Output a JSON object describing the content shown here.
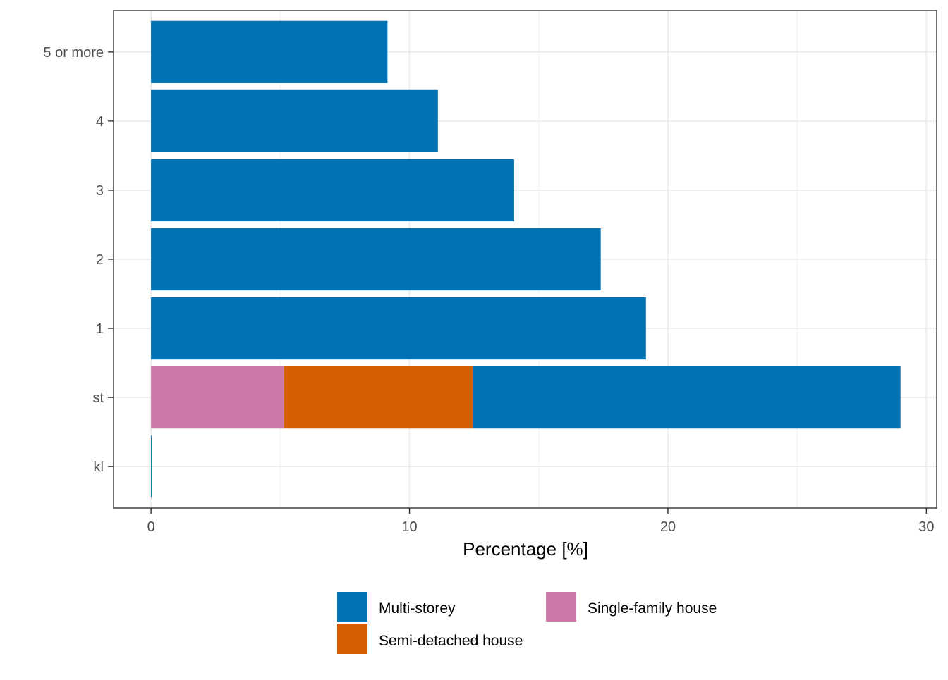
{
  "chart_data": {
    "type": "bar",
    "orientation": "horizontal",
    "stacked": true,
    "title": "",
    "xlabel": "Percentage [%]",
    "ylabel": "",
    "xlim": [
      -1.45,
      30.4
    ],
    "xticks": [
      0,
      10,
      20,
      30
    ],
    "grid": true,
    "legend_position": "bottom",
    "categories": [
      "kl",
      "st",
      "1",
      "2",
      "3",
      "4",
      "5 or more"
    ],
    "series": [
      {
        "name": "Single-family house",
        "color": "#CC79A7",
        "values": [
          0,
          5.15,
          0,
          0,
          0,
          0,
          0
        ]
      },
      {
        "name": "Semi-detached house",
        "color": "#D55E00",
        "values": [
          0,
          7.3,
          0,
          0,
          0,
          0,
          0
        ]
      },
      {
        "name": "Multi-storey",
        "color": "#0072B2",
        "values": [
          0.03,
          16.55,
          19.15,
          17.4,
          14.05,
          11.1,
          9.15
        ]
      }
    ],
    "legend": [
      {
        "name": "Multi-storey",
        "color": "#0072B2"
      },
      {
        "name": "Single-family house",
        "color": "#CC79A7"
      },
      {
        "name": "Semi-detached house",
        "color": "#D55E00"
      }
    ]
  }
}
